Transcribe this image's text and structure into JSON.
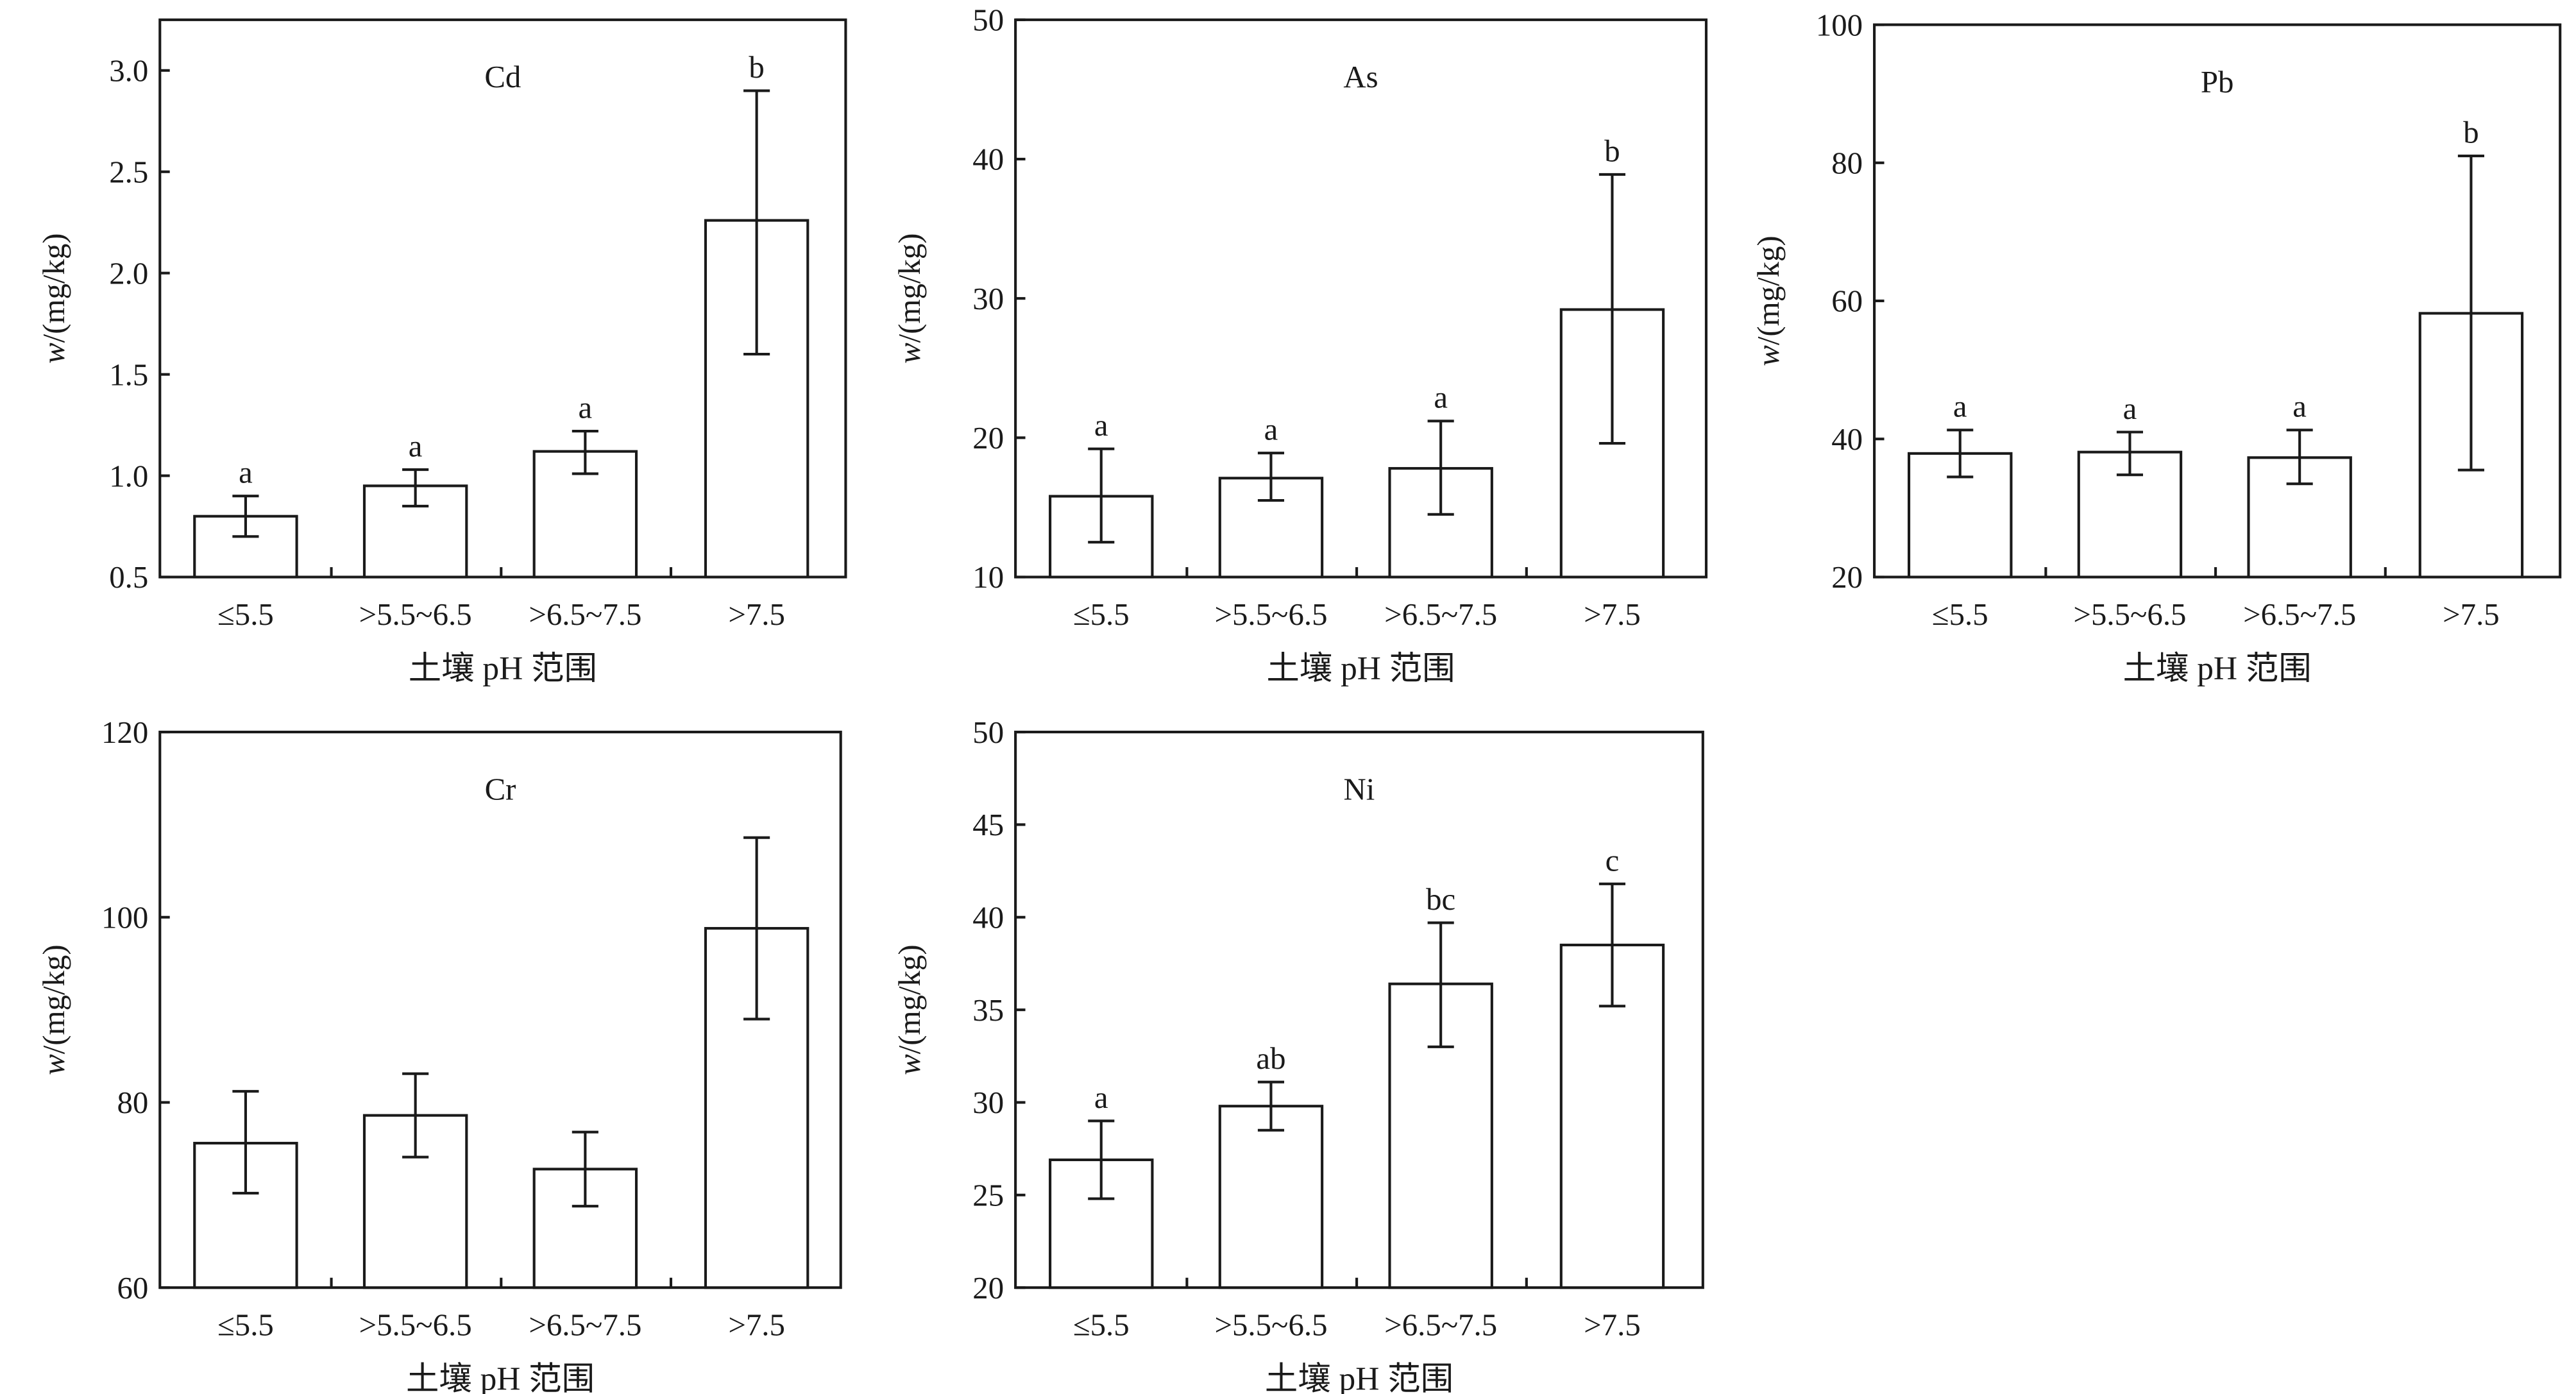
{
  "categories": [
    "≤5.5",
    ">5.5~6.5",
    ">6.5~7.5",
    ">7.5"
  ],
  "xlabel": "土壤 pH 范围",
  "ylabel": "w/(mg/kg)",
  "chart_data": [
    {
      "type": "bar",
      "title": "Cd",
      "categories": [
        "≤5.5",
        ">5.5~6.5",
        ">6.5~7.5",
        ">7.5"
      ],
      "values": [
        0.8,
        0.95,
        1.12,
        2.26
      ],
      "error_low": [
        0.7,
        0.85,
        1.01,
        1.6
      ],
      "error_high": [
        0.9,
        1.03,
        1.22,
        2.9
      ],
      "letters": [
        "a",
        "a",
        "a",
        "b"
      ],
      "xlabel": "土壤 pH 范围",
      "ylabel": "w/(mg/kg)",
      "ylim": [
        0.5,
        3.25
      ],
      "yticks": [
        "0.5",
        "1.0",
        "1.5",
        "2.0",
        "2.5",
        "3.0"
      ],
      "ytick_values": [
        0.5,
        1.0,
        1.5,
        2.0,
        2.5,
        3.0
      ]
    },
    {
      "type": "bar",
      "title": "As",
      "categories": [
        "≤5.5",
        ">5.5~6.5",
        ">6.5~7.5",
        ">7.5"
      ],
      "values": [
        15.8,
        17.1,
        17.8,
        29.2
      ],
      "error_low": [
        12.5,
        15.5,
        14.5,
        19.6
      ],
      "error_high": [
        19.2,
        18.9,
        21.2,
        38.9
      ],
      "letters": [
        "a",
        "a",
        "a",
        "b"
      ],
      "xlabel": "土壤 pH 范围",
      "ylabel": "w/(mg/kg)",
      "ylim": [
        10,
        50
      ],
      "yticks": [
        "10",
        "20",
        "30",
        "40",
        "50"
      ],
      "ytick_values": [
        10,
        20,
        30,
        40,
        50
      ]
    },
    {
      "type": "bar",
      "title": "Pb",
      "categories": [
        "≤5.5",
        ">5.5~6.5",
        ">6.5~7.5",
        ">7.5"
      ],
      "values": [
        37.9,
        38.1,
        37.3,
        58.2
      ],
      "error_low": [
        34.5,
        34.8,
        33.5,
        35.5
      ],
      "error_high": [
        41.3,
        41.0,
        41.3,
        81.0
      ],
      "letters": [
        "a",
        "a",
        "a",
        "b"
      ],
      "xlabel": "土壤 pH 范围",
      "ylabel": "w/(mg/kg)",
      "ylim": [
        20,
        100
      ],
      "yticks": [
        "20",
        "40",
        "60",
        "80",
        "100"
      ],
      "ytick_values": [
        20,
        40,
        60,
        80,
        100
      ]
    },
    {
      "type": "bar",
      "title": "Cr",
      "categories": [
        "≤5.5",
        ">5.5~6.5",
        ">6.5~7.5",
        ">7.5"
      ],
      "values": [
        75.6,
        78.6,
        72.8,
        98.8
      ],
      "error_low": [
        70.2,
        74.1,
        68.8,
        89.0
      ],
      "error_high": [
        81.2,
        83.1,
        76.8,
        108.6
      ],
      "letters": [
        "",
        "",
        "",
        ""
      ],
      "xlabel": "土壤 pH 范围",
      "ylabel": "w/(mg/kg)",
      "ylim": [
        60,
        120
      ],
      "yticks": [
        "60",
        "80",
        "100",
        "120"
      ],
      "ytick_values": [
        60,
        80,
        100,
        120
      ]
    },
    {
      "type": "bar",
      "title": "Ni",
      "categories": [
        "≤5.5",
        ">5.5~6.5",
        ">6.5~7.5",
        ">7.5"
      ],
      "values": [
        26.9,
        29.8,
        36.4,
        38.5
      ],
      "error_low": [
        24.8,
        28.5,
        33.0,
        35.2
      ],
      "error_high": [
        29.0,
        31.1,
        39.7,
        41.8
      ],
      "letters": [
        "a",
        "ab",
        "bc",
        "c"
      ],
      "xlabel": "土壤 pH 范围",
      "ylabel": "w/(mg/kg)",
      "ylim": [
        20,
        50
      ],
      "yticks": [
        "20",
        "25",
        "30",
        "35",
        "40",
        "45",
        "50"
      ],
      "ytick_values": [
        20,
        25,
        30,
        35,
        40,
        45,
        50
      ]
    }
  ]
}
